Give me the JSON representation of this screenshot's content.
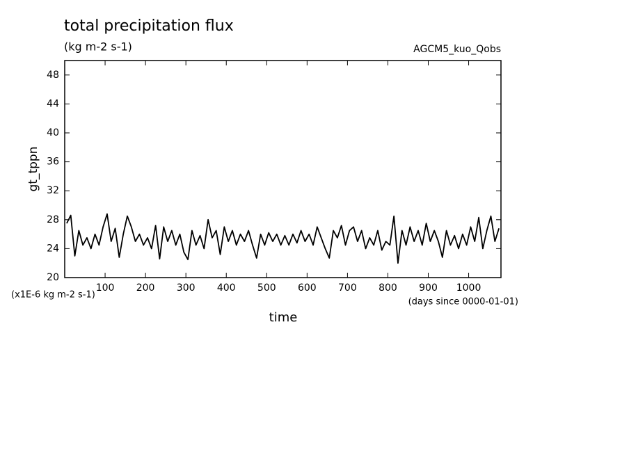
{
  "chart_data": {
    "type": "line",
    "title": "total precipitation flux",
    "subtitle": "(kg m-2 s-1)",
    "annotation": "AGCM5_kuo_Qobs",
    "y_label": "gt_tppn",
    "y_unit_note": "(x1E-6 kg m-2 s-1)",
    "x_label": "time",
    "x_unit_note": "(days since 0000-01-01)",
    "color": "#000000",
    "xlim": [
      0,
      1080
    ],
    "xticks": [
      100,
      200,
      300,
      400,
      500,
      600,
      700,
      800,
      900,
      1000
    ],
    "ylim": [
      20,
      50
    ],
    "yticks": [
      20,
      24,
      28,
      32,
      36,
      40,
      44,
      48
    ],
    "x": [
      5,
      15,
      25,
      35,
      45,
      55,
      65,
      75,
      85,
      95,
      105,
      115,
      125,
      135,
      145,
      155,
      165,
      175,
      185,
      195,
      205,
      215,
      225,
      235,
      245,
      255,
      265,
      275,
      285,
      295,
      305,
      315,
      325,
      335,
      345,
      355,
      365,
      375,
      385,
      395,
      405,
      415,
      425,
      435,
      445,
      455,
      465,
      475,
      485,
      495,
      505,
      515,
      525,
      535,
      545,
      555,
      565,
      575,
      585,
      595,
      605,
      615,
      625,
      635,
      645,
      655,
      665,
      675,
      685,
      695,
      705,
      715,
      725,
      735,
      745,
      755,
      765,
      775,
      785,
      795,
      805,
      815,
      825,
      835,
      845,
      855,
      865,
      875,
      885,
      895,
      905,
      915,
      925,
      935,
      945,
      955,
      965,
      975,
      985,
      995,
      1005,
      1015,
      1025,
      1035,
      1045,
      1055,
      1065,
      1075
    ],
    "values": [
      27.5,
      28.6,
      23.0,
      26.5,
      24.5,
      25.5,
      24.0,
      26.0,
      24.5,
      27.0,
      28.8,
      25.0,
      26.8,
      22.8,
      26.0,
      28.5,
      27.0,
      25.0,
      26.0,
      24.5,
      25.5,
      24.0,
      27.2,
      22.6,
      27.0,
      25.0,
      26.5,
      24.5,
      26.0,
      23.5,
      22.5,
      26.5,
      24.5,
      25.8,
      24.0,
      28.0,
      25.5,
      26.5,
      23.2,
      27.0,
      25.0,
      26.5,
      24.5,
      26.0,
      25.0,
      26.5,
      24.5,
      22.7,
      26.0,
      24.5,
      26.2,
      25.0,
      26.0,
      24.5,
      25.8,
      24.5,
      26.0,
      24.8,
      26.5,
      25.0,
      26.0,
      24.5,
      27.0,
      25.5,
      24.0,
      22.7,
      26.5,
      25.5,
      27.2,
      24.5,
      26.5,
      27.0,
      25.0,
      26.5,
      24.0,
      25.5,
      24.5,
      26.5,
      23.8,
      25.0,
      24.5,
      28.5,
      22.0,
      26.5,
      24.5,
      27.0,
      25.0,
      26.5,
      24.5,
      27.5,
      25.0,
      26.5,
      25.0,
      22.8,
      26.5,
      24.5,
      25.8,
      24.0,
      26.0,
      24.5,
      27.0,
      25.0,
      28.3,
      24.0,
      26.5,
      28.5,
      25.0,
      26.8
    ]
  }
}
